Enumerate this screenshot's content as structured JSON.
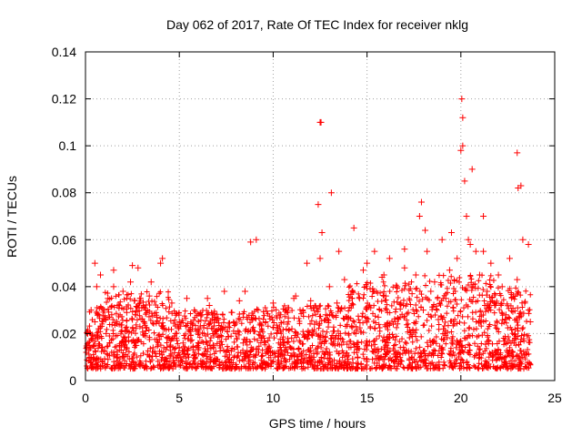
{
  "chart_data": {
    "type": "scatter",
    "title": "Day 062 of 2017, Rate Of TEC Index for receiver nklg",
    "xlabel": "GPS time / hours",
    "ylabel": "ROTI / TECUs",
    "xlim": [
      0,
      25
    ],
    "ylim": [
      0,
      0.14
    ],
    "xticks": [
      0,
      5,
      10,
      15,
      20,
      25
    ],
    "xtick_labels": [
      "0",
      "5",
      "10",
      "15",
      "20",
      "25"
    ],
    "yticks": [
      0,
      0.02,
      0.04,
      0.06,
      0.08,
      0.1,
      0.12,
      0.14
    ],
    "ytick_labels": [
      "0",
      "0.02",
      "0.04",
      "0.06",
      "0.08",
      "0.1",
      "0.12",
      "0.14"
    ],
    "grid": true,
    "marker": "+",
    "color": "#ff0000",
    "series": [
      {
        "name": "ROTI",
        "x": [
          0.05,
          0.12,
          0.2,
          0.3,
          0.4,
          0.5,
          0.6,
          0.7,
          0.8,
          0.9,
          1.0,
          1.1,
          1.2,
          1.3,
          1.4,
          1.5,
          1.6,
          1.7,
          1.8,
          1.9,
          2.0,
          2.1,
          2.2,
          2.3,
          2.4,
          2.5,
          2.6,
          2.7,
          2.8,
          2.9,
          3.0,
          3.2,
          3.4,
          3.6,
          3.8,
          4.0,
          4.2,
          4.4,
          4.6,
          4.8,
          5.0,
          5.2,
          5.4,
          5.6,
          5.8,
          6.0,
          6.2,
          6.4,
          6.6,
          6.8,
          7.0,
          7.2,
          7.4,
          7.6,
          7.8,
          8.0,
          8.2,
          8.4,
          8.6,
          8.8,
          9.0,
          9.2,
          9.4,
          9.6,
          9.8,
          10.0,
          10.2,
          10.4,
          10.6,
          10.8,
          11.0,
          11.2,
          11.4,
          11.6,
          11.8,
          12.0,
          12.2,
          12.4,
          12.5,
          12.6,
          12.8,
          13.0,
          13.2,
          13.4,
          13.6,
          13.8,
          14.0,
          14.2,
          14.4,
          14.6,
          14.8,
          15.0,
          15.2,
          15.4,
          15.6,
          15.8,
          16.0,
          16.2,
          16.4,
          16.6,
          16.8,
          17.0,
          17.2,
          17.4,
          17.6,
          17.8,
          18.0,
          18.2,
          18.4,
          18.6,
          18.8,
          19.0,
          19.2,
          19.4,
          19.6,
          19.8,
          20.0,
          20.1,
          20.2,
          20.4,
          20.6,
          20.8,
          21.0,
          21.2,
          21.4,
          21.6,
          21.8,
          22.0,
          22.2,
          22.4,
          22.6,
          22.8,
          23.0,
          23.2,
          23.4,
          23.6,
          23.7,
          0.5,
          1.5,
          2.5,
          3.5,
          4.1,
          6.5,
          8.5,
          9.1,
          11.1,
          12.5,
          12.55,
          13.1,
          13.5,
          14.3,
          15.9,
          17.0,
          17.9,
          18.1,
          19.5,
          20.05,
          20.1,
          20.3,
          20.5,
          21.2,
          23.0,
          23.05,
          23.3,
          0.3,
          0.8,
          1.2,
          2.0,
          2.7,
          3.3,
          4.5,
          5.5,
          6.0,
          7.0,
          7.5,
          8.0,
          8.7,
          9.5,
          10.5,
          11.5,
          12.0,
          13.0,
          14.0,
          14.5,
          15.0,
          15.5,
          16.0,
          16.5,
          17.5,
          18.5,
          19.0,
          20.0,
          21.0,
          21.5,
          22.0,
          22.5,
          23.5
        ],
        "y": [
          0.012,
          0.02,
          0.015,
          0.03,
          0.018,
          0.025,
          0.04,
          0.022,
          0.045,
          0.014,
          0.03,
          0.02,
          0.035,
          0.016,
          0.028,
          0.04,
          0.019,
          0.032,
          0.024,
          0.013,
          0.038,
          0.021,
          0.029,
          0.017,
          0.042,
          0.026,
          0.034,
          0.015,
          0.048,
          0.023,
          0.031,
          0.019,
          0.036,
          0.014,
          0.027,
          0.05,
          0.022,
          0.018,
          0.033,
          0.02,
          0.025,
          0.016,
          0.035,
          0.021,
          0.03,
          0.014,
          0.028,
          0.019,
          0.032,
          0.015,
          0.026,
          0.022,
          0.038,
          0.013,
          0.029,
          0.02,
          0.034,
          0.016,
          0.027,
          0.059,
          0.021,
          0.03,
          0.018,
          0.025,
          0.014,
          0.033,
          0.02,
          0.028,
          0.016,
          0.031,
          0.022,
          0.036,
          0.017,
          0.029,
          0.05,
          0.034,
          0.024,
          0.075,
          0.11,
          0.063,
          0.028,
          0.04,
          0.021,
          0.033,
          0.018,
          0.043,
          0.026,
          0.038,
          0.02,
          0.035,
          0.047,
          0.05,
          0.031,
          0.055,
          0.027,
          0.044,
          0.036,
          0.052,
          0.024,
          0.04,
          0.033,
          0.048,
          0.029,
          0.037,
          0.045,
          0.07,
          0.03,
          0.055,
          0.038,
          0.042,
          0.026,
          0.06,
          0.035,
          0.047,
          0.031,
          0.052,
          0.098,
          0.112,
          0.085,
          0.06,
          0.09,
          0.055,
          0.045,
          0.07,
          0.038,
          0.05,
          0.032,
          0.045,
          0.04,
          0.028,
          0.052,
          0.036,
          0.043,
          0.083,
          0.033,
          0.058,
          0.025,
          0.05,
          0.047,
          0.049,
          0.042,
          0.052,
          0.035,
          0.038,
          0.06,
          0.035,
          0.052,
          0.11,
          0.08,
          0.055,
          0.065,
          0.045,
          0.056,
          0.076,
          0.064,
          0.063,
          0.12,
          0.1,
          0.07,
          0.058,
          0.055,
          0.097,
          0.082,
          0.06,
          0.008,
          0.006,
          0.009,
          0.01,
          0.007,
          0.011,
          0.008,
          0.01,
          0.007,
          0.009,
          0.012,
          0.006,
          0.01,
          0.008,
          0.011,
          0.009,
          0.007,
          0.012,
          0.008,
          0.01,
          0.009,
          0.013,
          0.011,
          0.01,
          0.009,
          0.012,
          0.014,
          0.012,
          0.011,
          0.01,
          0.013,
          0.012,
          0.011
        ]
      }
    ]
  }
}
